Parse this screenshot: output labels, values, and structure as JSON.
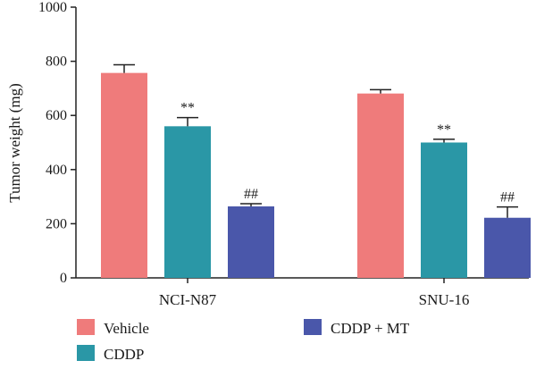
{
  "chart_data": {
    "type": "bar",
    "title": "",
    "xlabel": "",
    "ylabel": "Tumor weight (mg)",
    "ylim": [
      0,
      1000
    ],
    "yticks": [
      0,
      200,
      400,
      600,
      800,
      1000
    ],
    "grid": false,
    "legend_position": "bottom",
    "categories": [
      "NCI-N87",
      "SNU-16"
    ],
    "series": [
      {
        "name": "Vehicle",
        "color": "#ef7b7b",
        "values": [
          757,
          681
        ],
        "errors": [
          30,
          14
        ],
        "annotations": [
          "",
          ""
        ]
      },
      {
        "name": "CDDP",
        "color": "#2a97a6",
        "values": [
          560,
          500
        ],
        "errors": [
          32,
          12
        ],
        "annotations": [
          "**",
          "**"
        ]
      },
      {
        "name": "CDDP + MT",
        "color": "#4a57aa",
        "values": [
          264,
          222
        ],
        "errors": [
          10,
          40
        ],
        "annotations": [
          "##",
          "##"
        ]
      }
    ]
  }
}
